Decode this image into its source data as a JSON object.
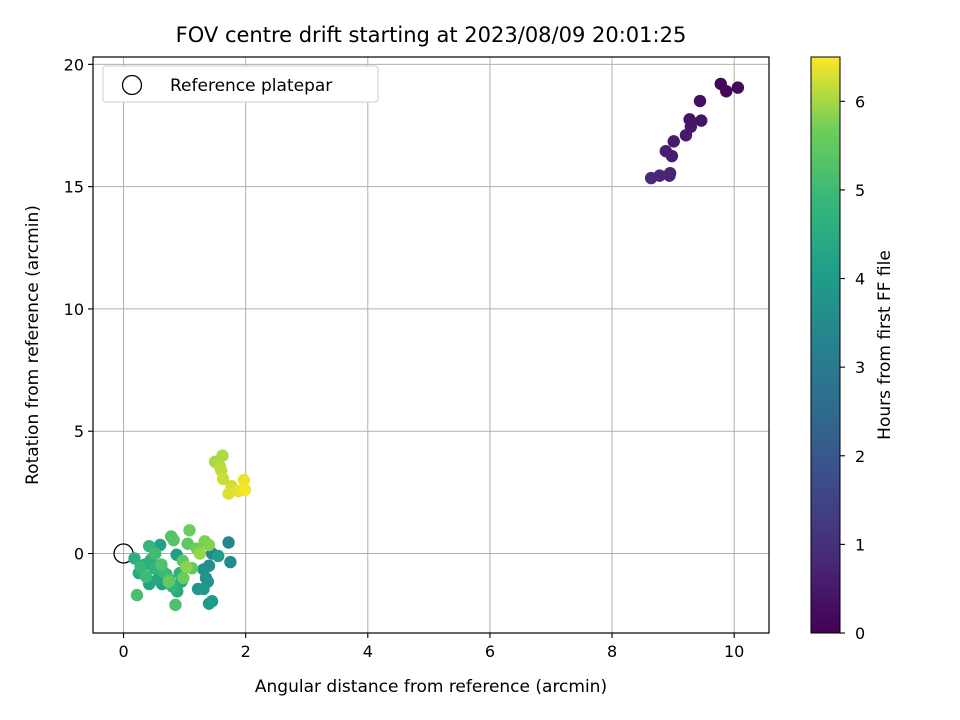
{
  "chart_data": {
    "type": "scatter",
    "title": "FOV centre drift starting at 2023/08/09 20:01:25",
    "xlabel": "Angular distance from reference (arcmin)",
    "ylabel": "Rotation from reference (arcmin)",
    "xlim": [
      -0.5,
      10.57
    ],
    "ylim": [
      -3.25,
      20.3
    ],
    "xticks": [
      0,
      2,
      4,
      6,
      8,
      10
    ],
    "yticks": [
      0,
      5,
      10,
      15,
      20
    ],
    "grid": true,
    "legend": {
      "placement": "top-left",
      "entries": [
        "Reference platepar"
      ]
    },
    "reference_point": {
      "x": 0,
      "y": 0,
      "label": "Reference platepar"
    },
    "colorbar": {
      "label": "Hours from first FF file",
      "colormap": "viridis",
      "min": 0,
      "max": 6.5,
      "ticks": [
        0,
        1,
        2,
        3,
        4,
        5,
        6
      ]
    },
    "points": [
      {
        "x": 9.78,
        "y": 19.2,
        "c": 0.1
      },
      {
        "x": 9.87,
        "y": 18.9,
        "c": 0.12
      },
      {
        "x": 10.06,
        "y": 19.05,
        "c": 0.15
      },
      {
        "x": 9.44,
        "y": 18.5,
        "c": 0.3
      },
      {
        "x": 9.27,
        "y": 17.75,
        "c": 0.35
      },
      {
        "x": 9.46,
        "y": 17.7,
        "c": 0.4
      },
      {
        "x": 9.29,
        "y": 17.45,
        "c": 0.45
      },
      {
        "x": 9.21,
        "y": 17.1,
        "c": 0.5
      },
      {
        "x": 9.01,
        "y": 16.85,
        "c": 0.55
      },
      {
        "x": 8.98,
        "y": 16.25,
        "c": 0.6
      },
      {
        "x": 8.88,
        "y": 16.45,
        "c": 0.65
      },
      {
        "x": 8.95,
        "y": 15.55,
        "c": 0.7
      },
      {
        "x": 8.94,
        "y": 15.45,
        "c": 0.75
      },
      {
        "x": 8.78,
        "y": 15.45,
        "c": 0.8
      },
      {
        "x": 8.64,
        "y": 15.35,
        "c": 0.85
      },
      {
        "x": 1.45,
        "y": 0.0,
        "c": 3.3
      },
      {
        "x": 1.72,
        "y": 0.45,
        "c": 3.4
      },
      {
        "x": 1.75,
        "y": -0.35,
        "c": 3.5
      },
      {
        "x": 1.4,
        "y": -0.5,
        "c": 3.6
      },
      {
        "x": 1.31,
        "y": -0.65,
        "c": 3.7
      },
      {
        "x": 1.35,
        "y": -1.0,
        "c": 3.75
      },
      {
        "x": 1.38,
        "y": -1.15,
        "c": 3.8
      },
      {
        "x": 1.22,
        "y": -1.45,
        "c": 3.85
      },
      {
        "x": 1.31,
        "y": -1.45,
        "c": 3.9
      },
      {
        "x": 1.4,
        "y": -2.05,
        "c": 3.95
      },
      {
        "x": 1.45,
        "y": -1.95,
        "c": 4.0
      },
      {
        "x": 1.55,
        "y": -0.1,
        "c": 4.05
      },
      {
        "x": 0.87,
        "y": -0.05,
        "c": 4.1
      },
      {
        "x": 0.6,
        "y": 0.35,
        "c": 4.15
      },
      {
        "x": 0.63,
        "y": -1.25,
        "c": 4.2
      },
      {
        "x": 0.42,
        "y": -1.25,
        "c": 4.25
      },
      {
        "x": 0.56,
        "y": -1.05,
        "c": 4.3
      },
      {
        "x": 0.95,
        "y": -1.15,
        "c": 4.35
      },
      {
        "x": 0.35,
        "y": -0.45,
        "c": 4.4
      },
      {
        "x": 0.25,
        "y": -0.8,
        "c": 4.45
      },
      {
        "x": 0.88,
        "y": -1.55,
        "c": 4.5
      },
      {
        "x": 0.7,
        "y": -0.85,
        "c": 4.55
      },
      {
        "x": 0.18,
        "y": -0.2,
        "c": 4.6
      },
      {
        "x": 0.45,
        "y": -0.25,
        "c": 4.65
      },
      {
        "x": 0.92,
        "y": -0.8,
        "c": 4.7
      },
      {
        "x": 0.5,
        "y": -0.6,
        "c": 4.75
      },
      {
        "x": 0.8,
        "y": -1.35,
        "c": 4.8
      },
      {
        "x": 0.42,
        "y": 0.3,
        "c": 4.85
      },
      {
        "x": 0.28,
        "y": -0.55,
        "c": 4.9
      },
      {
        "x": 0.65,
        "y": -0.75,
        "c": 4.95
      },
      {
        "x": 0.37,
        "y": -0.95,
        "c": 5.0
      },
      {
        "x": 0.52,
        "y": 0.0,
        "c": 5.05
      },
      {
        "x": 0.75,
        "y": -1.05,
        "c": 5.1
      },
      {
        "x": 0.22,
        "y": -1.7,
        "c": 5.15
      },
      {
        "x": 0.85,
        "y": -2.1,
        "c": 5.2
      },
      {
        "x": 0.62,
        "y": -0.45,
        "c": 5.25
      },
      {
        "x": 0.78,
        "y": 0.7,
        "c": 5.3
      },
      {
        "x": 0.82,
        "y": 0.55,
        "c": 5.35
      },
      {
        "x": 0.97,
        "y": -0.3,
        "c": 5.4
      },
      {
        "x": 1.05,
        "y": 0.4,
        "c": 5.45
      },
      {
        "x": 1.12,
        "y": -0.6,
        "c": 5.5
      },
      {
        "x": 0.74,
        "y": -1.15,
        "c": 5.55
      },
      {
        "x": 0.98,
        "y": -1.0,
        "c": 5.6
      },
      {
        "x": 1.08,
        "y": 0.95,
        "c": 5.65
      },
      {
        "x": 1.2,
        "y": 0.2,
        "c": 5.7
      },
      {
        "x": 1.33,
        "y": 0.5,
        "c": 5.75
      },
      {
        "x": 1.4,
        "y": 0.35,
        "c": 5.8
      },
      {
        "x": 1.03,
        "y": -0.55,
        "c": 5.85
      },
      {
        "x": 1.25,
        "y": 0.0,
        "c": 5.9
      },
      {
        "x": 1.5,
        "y": 3.75,
        "c": 6.0
      },
      {
        "x": 1.62,
        "y": 4.0,
        "c": 6.05
      },
      {
        "x": 1.58,
        "y": 3.55,
        "c": 6.1
      },
      {
        "x": 1.6,
        "y": 3.4,
        "c": 6.15
      },
      {
        "x": 1.63,
        "y": 3.05,
        "c": 6.2
      },
      {
        "x": 1.77,
        "y": 2.75,
        "c": 6.25
      },
      {
        "x": 1.72,
        "y": 2.45,
        "c": 6.3
      },
      {
        "x": 1.88,
        "y": 2.55,
        "c": 6.35
      },
      {
        "x": 1.97,
        "y": 3.0,
        "c": 6.4
      },
      {
        "x": 1.99,
        "y": 2.6,
        "c": 6.45
      }
    ]
  }
}
